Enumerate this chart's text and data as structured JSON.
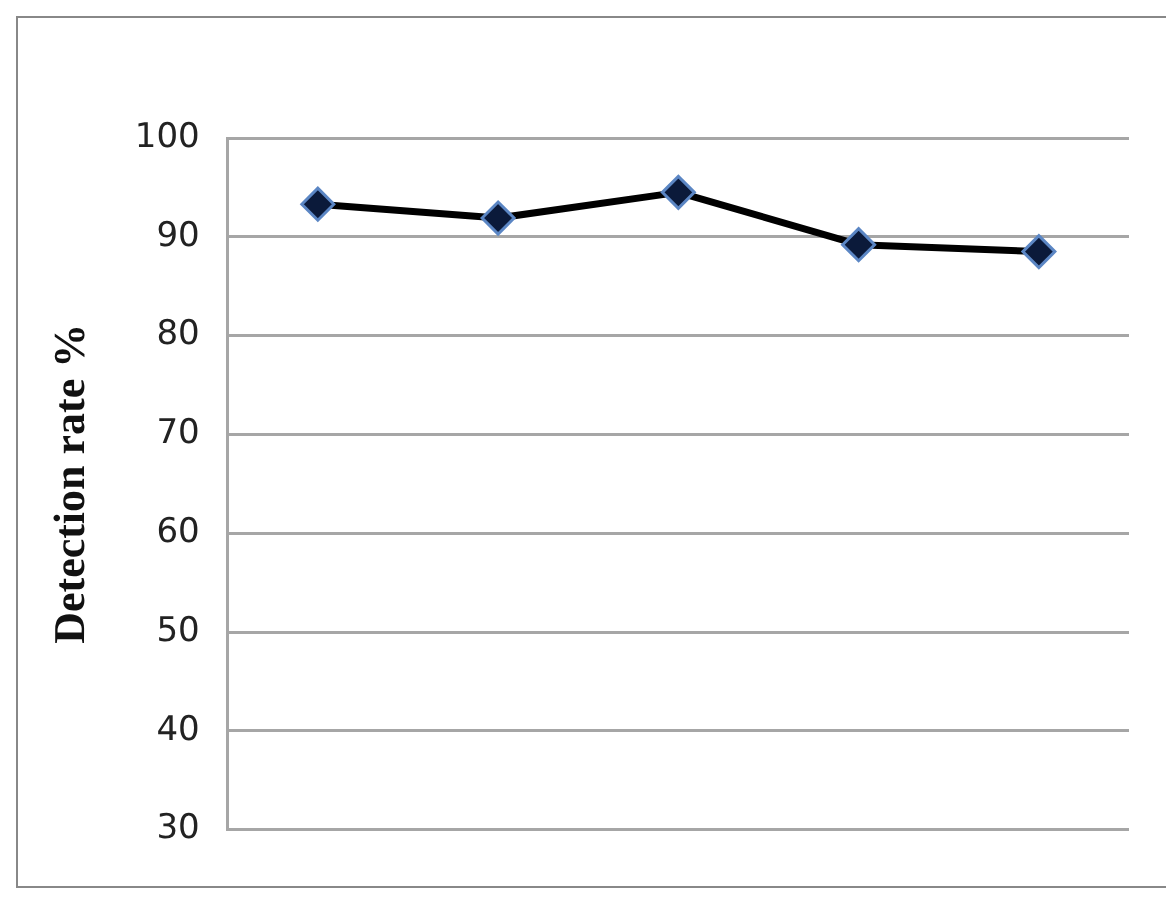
{
  "chart_data": {
    "type": "line",
    "ylabel": "Detection rate %",
    "categories": [
      null,
      null,
      null,
      null,
      null
    ],
    "series": [
      {
        "color": "#000000",
        "values": [
          93.3,
          91.9,
          94.5,
          89.2,
          88.5
        ]
      }
    ],
    "ylim": [
      30,
      100
    ],
    "yticks": [
      30,
      40,
      50,
      60,
      70,
      80,
      90,
      100
    ],
    "grid": "y",
    "marker": "diamond",
    "line_style": "solid",
    "tick_labels": "y",
    "legend": false
  }
}
